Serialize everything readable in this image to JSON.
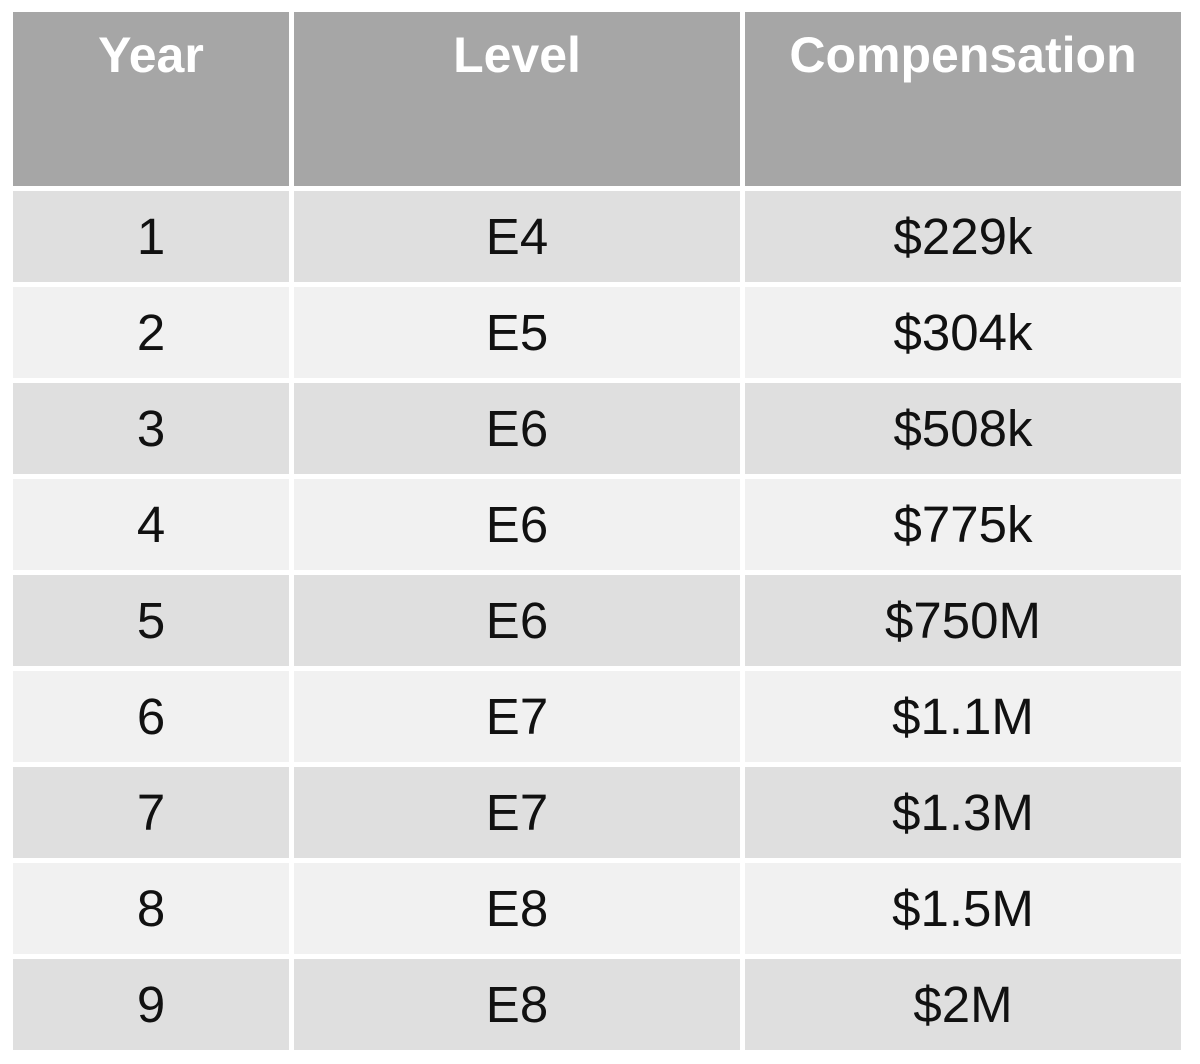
{
  "colors": {
    "header_background": "#a6a6a6",
    "header_text": "#ffffff",
    "row_odd_background": "#dfdfdf",
    "row_even_background": "#f1f1f1",
    "cell_text": "#111111",
    "gutter": "#ffffff"
  },
  "table": {
    "columns": [
      "Year",
      "Level",
      "Compensation"
    ],
    "rows": [
      [
        "1",
        "E4",
        "$229k"
      ],
      [
        "2",
        "E5",
        "$304k"
      ],
      [
        "3",
        "E6",
        "$508k"
      ],
      [
        "4",
        "E6",
        "$775k"
      ],
      [
        "5",
        "E6",
        "$750M"
      ],
      [
        "6",
        "E7",
        "$1.1M"
      ],
      [
        "7",
        "E7",
        "$1.3M"
      ],
      [
        "8",
        "E8",
        "$1.5M"
      ],
      [
        "9",
        "E8",
        "$2M"
      ]
    ]
  },
  "chart_data": {
    "type": "table",
    "title": "",
    "columns": [
      "Year",
      "Level",
      "Compensation"
    ],
    "rows": [
      {
        "year": 1,
        "level": "E4",
        "compensation": "$229k"
      },
      {
        "year": 2,
        "level": "E5",
        "compensation": "$304k"
      },
      {
        "year": 3,
        "level": "E6",
        "compensation": "$508k"
      },
      {
        "year": 4,
        "level": "E6",
        "compensation": "$775k"
      },
      {
        "year": 5,
        "level": "E6",
        "compensation": "$750M"
      },
      {
        "year": 6,
        "level": "E7",
        "compensation": "$1.1M"
      },
      {
        "year": 7,
        "level": "E7",
        "compensation": "$1.3M"
      },
      {
        "year": 8,
        "level": "E8",
        "compensation": "$1.5M"
      },
      {
        "year": 9,
        "level": "E8",
        "compensation": "$2M"
      }
    ]
  }
}
